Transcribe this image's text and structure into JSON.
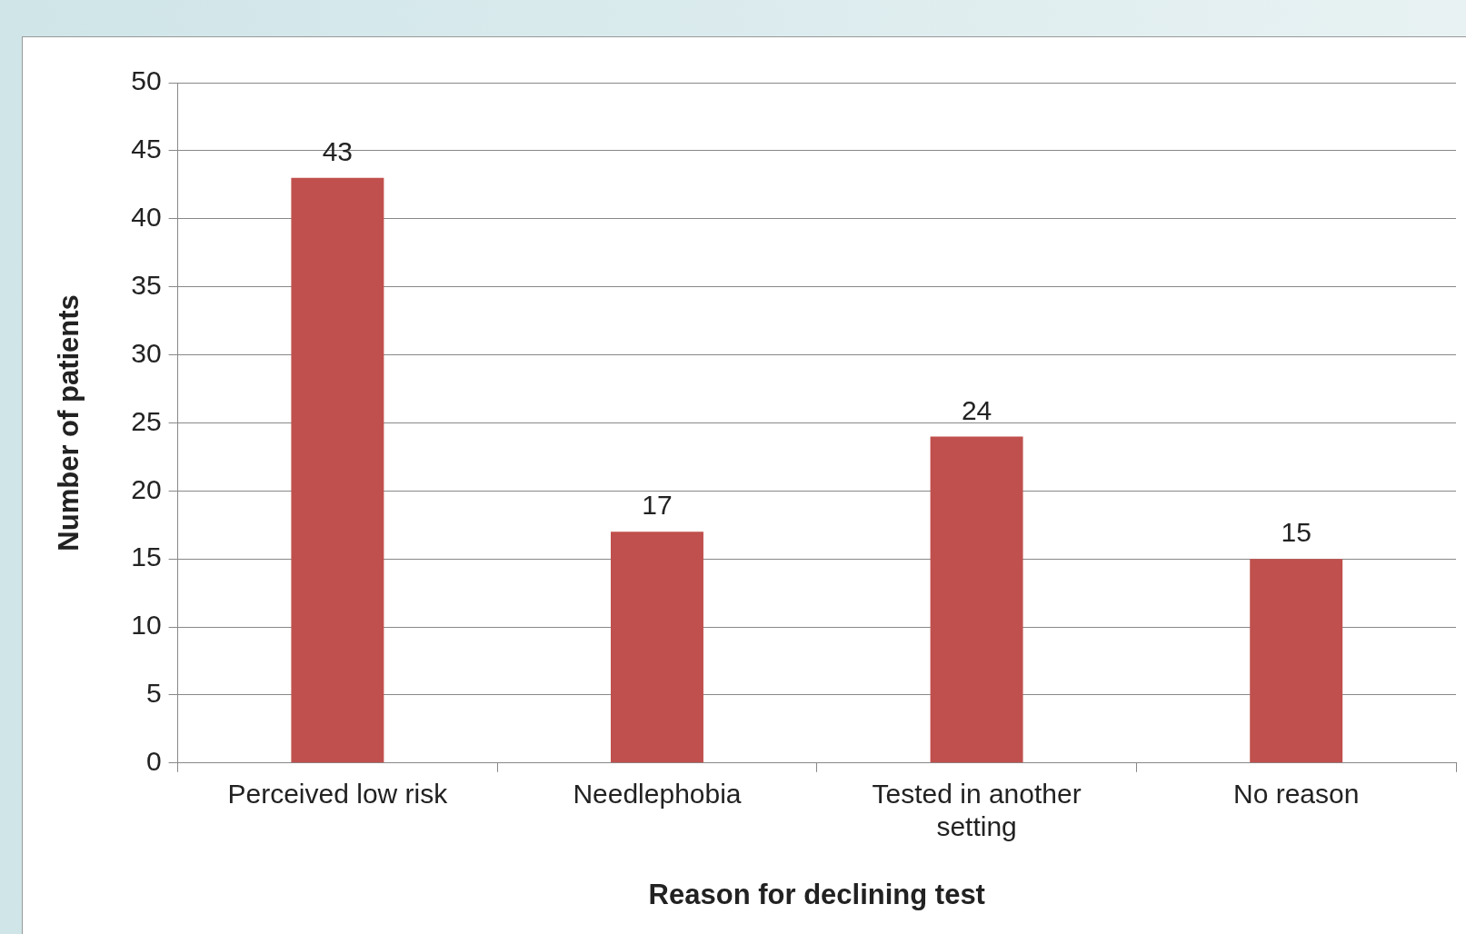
{
  "chart_data": {
    "type": "bar",
    "xlabel": "Reason for declining test",
    "ylabel": "Number of patients",
    "categories": [
      "Perceived low risk",
      "Needlephobia",
      "Tested in another setting",
      "No reason"
    ],
    "values": [
      43,
      17,
      24,
      15
    ],
    "color": "#c0504d",
    "ylim": [
      0,
      50
    ],
    "yticks": [
      0,
      5,
      10,
      15,
      20,
      25,
      30,
      35,
      40,
      45,
      50
    ],
    "grid": "y",
    "data_labels": true,
    "legend": false
  }
}
